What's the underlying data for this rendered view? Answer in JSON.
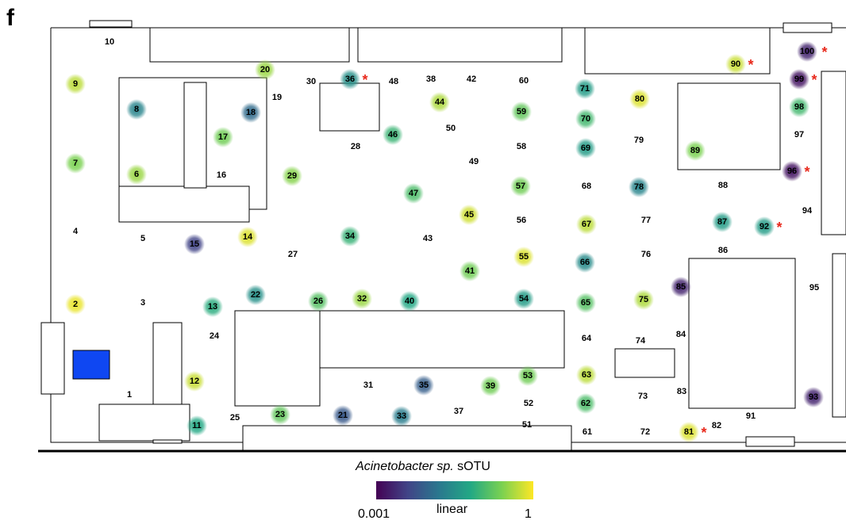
{
  "panel_label": "f",
  "legend": {
    "title_italic": "Acinetobacter sp.",
    "title_rest": " sOTU",
    "min": "0.001",
    "scale": "linear",
    "max": "1",
    "colors": [
      "#440154",
      "#414487",
      "#2a788e",
      "#22a884",
      "#7ad151",
      "#fde725"
    ]
  },
  "marker": "*",
  "marker_color": "#e8291c",
  "door_color": "#0f47f2",
  "points": [
    {
      "id": "1",
      "v": null
    },
    {
      "id": "2",
      "v": 0.97
    },
    {
      "id": "3",
      "v": null
    },
    {
      "id": "4",
      "v": null
    },
    {
      "id": "5",
      "v": null
    },
    {
      "id": "6",
      "v": 0.85
    },
    {
      "id": "7",
      "v": 0.8
    },
    {
      "id": "8",
      "v": 0.45
    },
    {
      "id": "9",
      "v": 0.9
    },
    {
      "id": "10",
      "v": null
    },
    {
      "id": "11",
      "v": 0.6
    },
    {
      "id": "12",
      "v": 0.92
    },
    {
      "id": "13",
      "v": 0.62
    },
    {
      "id": "14",
      "v": 0.95
    },
    {
      "id": "15",
      "v": 0.2
    },
    {
      "id": "16",
      "v": null
    },
    {
      "id": "17",
      "v": 0.78
    },
    {
      "id": "18",
      "v": 0.35
    },
    {
      "id": "19",
      "v": null
    },
    {
      "id": "20",
      "v": 0.85
    },
    {
      "id": "21",
      "v": 0.28
    },
    {
      "id": "22",
      "v": 0.5
    },
    {
      "id": "23",
      "v": 0.75
    },
    {
      "id": "24",
      "v": null
    },
    {
      "id": "25",
      "v": null
    },
    {
      "id": "26",
      "v": 0.72
    },
    {
      "id": "27",
      "v": null
    },
    {
      "id": "28",
      "v": null
    },
    {
      "id": "29",
      "v": 0.82
    },
    {
      "id": "30",
      "v": null
    },
    {
      "id": "31",
      "v": null
    },
    {
      "id": "32",
      "v": 0.85
    },
    {
      "id": "33",
      "v": 0.42
    },
    {
      "id": "34",
      "v": 0.65
    },
    {
      "id": "35",
      "v": 0.3
    },
    {
      "id": "36",
      "v": 0.5,
      "marked": true
    },
    {
      "id": "37",
      "v": null
    },
    {
      "id": "38",
      "v": null
    },
    {
      "id": "39",
      "v": 0.78
    },
    {
      "id": "40",
      "v": 0.6
    },
    {
      "id": "41",
      "v": 0.78
    },
    {
      "id": "42",
      "v": null
    },
    {
      "id": "43",
      "v": null
    },
    {
      "id": "44",
      "v": 0.88
    },
    {
      "id": "45",
      "v": 0.93
    },
    {
      "id": "46",
      "v": 0.66
    },
    {
      "id": "47",
      "v": 0.7
    },
    {
      "id": "48",
      "v": null
    },
    {
      "id": "49",
      "v": null
    },
    {
      "id": "50",
      "v": null
    },
    {
      "id": "51",
      "v": null
    },
    {
      "id": "52",
      "v": null
    },
    {
      "id": "53",
      "v": 0.78
    },
    {
      "id": "54",
      "v": 0.55
    },
    {
      "id": "55",
      "v": 0.95
    },
    {
      "id": "56",
      "v": null
    },
    {
      "id": "57",
      "v": 0.78
    },
    {
      "id": "58",
      "v": null
    },
    {
      "id": "59",
      "v": 0.75
    },
    {
      "id": "60",
      "v": null
    },
    {
      "id": "61",
      "v": null
    },
    {
      "id": "62",
      "v": 0.7
    },
    {
      "id": "63",
      "v": 0.9
    },
    {
      "id": "64",
      "v": null
    },
    {
      "id": "65",
      "v": 0.72
    },
    {
      "id": "66",
      "v": 0.48
    },
    {
      "id": "67",
      "v": 0.9
    },
    {
      "id": "68",
      "v": null
    },
    {
      "id": "69",
      "v": 0.55
    },
    {
      "id": "70",
      "v": 0.68
    },
    {
      "id": "71",
      "v": 0.55
    },
    {
      "id": "72",
      "v": null
    },
    {
      "id": "73",
      "v": null
    },
    {
      "id": "74",
      "v": null
    },
    {
      "id": "75",
      "v": 0.88
    },
    {
      "id": "76",
      "v": null
    },
    {
      "id": "77",
      "v": null
    },
    {
      "id": "78",
      "v": 0.45
    },
    {
      "id": "79",
      "v": null
    },
    {
      "id": "80",
      "v": 0.95
    },
    {
      "id": "81",
      "v": 0.95,
      "marked": true
    },
    {
      "id": "82",
      "v": null
    },
    {
      "id": "83",
      "v": null
    },
    {
      "id": "84",
      "v": null
    },
    {
      "id": "85",
      "v": 0.1
    },
    {
      "id": "86",
      "v": null
    },
    {
      "id": "87",
      "v": 0.55
    },
    {
      "id": "88",
      "v": null
    },
    {
      "id": "89",
      "v": 0.8
    },
    {
      "id": "90",
      "v": 0.92,
      "marked": true
    },
    {
      "id": "91",
      "v": null
    },
    {
      "id": "92",
      "v": 0.55,
      "marked": true
    },
    {
      "id": "93",
      "v": 0.1
    },
    {
      "id": "94",
      "v": null
    },
    {
      "id": "95",
      "v": null
    },
    {
      "id": "96",
      "v": 0.05,
      "marked": true
    },
    {
      "id": "97",
      "v": null
    },
    {
      "id": "98",
      "v": 0.68
    },
    {
      "id": "99",
      "v": 0.05,
      "marked": true
    },
    {
      "id": "100",
      "v": 0.1,
      "marked": true
    }
  ]
}
